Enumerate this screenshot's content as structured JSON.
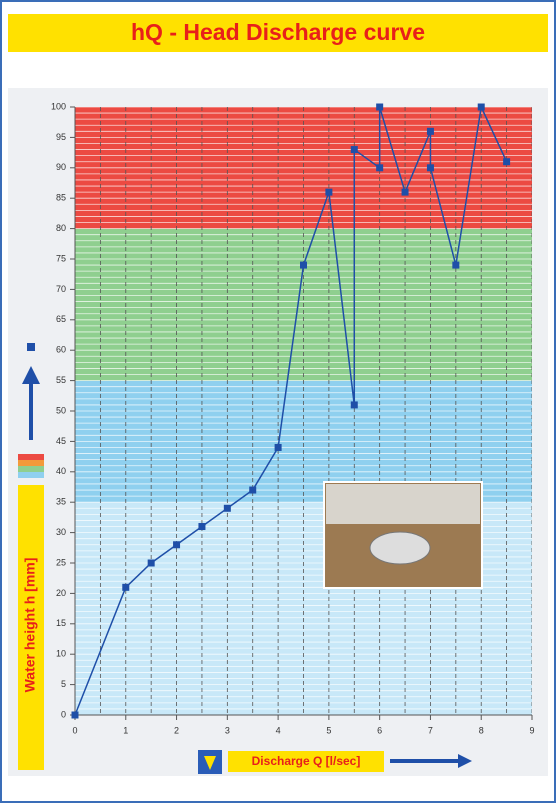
{
  "chart_data": {
    "type": "line",
    "title": "hQ - Head Discharge curve",
    "x_label": "Discharge Q [l/sec]",
    "y_label": "Water height h [mm]",
    "series": [
      {
        "color": "#1f4fa8",
        "x": [
          0,
          1,
          1.5,
          2,
          2.5,
          3,
          3.5,
          4,
          4.5,
          5,
          5.5,
          5.5,
          6,
          6,
          6.5,
          7,
          7,
          7.5,
          8,
          8.5
        ],
        "values": [
          0,
          21,
          25,
          28,
          31,
          34,
          37,
          44,
          74,
          86,
          51,
          93,
          90,
          100,
          86,
          96,
          90,
          74,
          100,
          91
        ]
      }
    ],
    "xlim": [
      0,
      9
    ],
    "xticks": [
      0,
      1,
      2,
      3,
      4,
      5,
      6,
      7,
      8,
      9
    ],
    "x_minor_step": 0.5,
    "ylim": [
      0,
      100
    ],
    "yticks": [
      0,
      5,
      10,
      15,
      20,
      25,
      30,
      35,
      40,
      45,
      50,
      55,
      60,
      65,
      70,
      75,
      80,
      85,
      90,
      95,
      100
    ],
    "y_minor_step": 1,
    "bands": [
      {
        "from": 0,
        "to": 35,
        "color": "#c8e8f8"
      },
      {
        "from": 35,
        "to": 55,
        "color": "#8fd0ef"
      },
      {
        "from": 55,
        "to": 80,
        "color": "#8fcf8f"
      },
      {
        "from": 80,
        "to": 100,
        "color": "#ec4a42"
      }
    ]
  }
}
